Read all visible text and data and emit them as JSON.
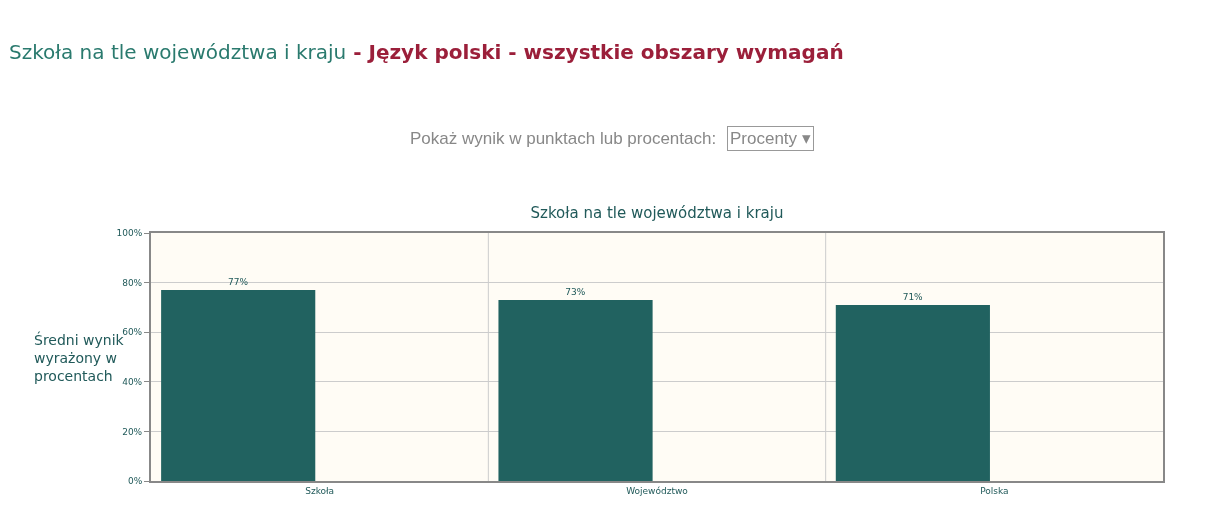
{
  "chart_data": {
    "type": "bar",
    "title": "Szkoła na tle województwa i kraju",
    "ylabel": "Średni wynik wyrażony w procentach",
    "annotations": [
      "Szkoła na tle województwa i kraju",
      " - Język polski - wszystkie obszary wymagań",
      "Pokaż wynik w punktach lub procentach:",
      "Procenty ▾"
    ],
    "categories": [
      "Szkoła",
      "Województwo",
      "Polska"
    ],
    "values": [
      77,
      73,
      71
    ],
    "value_labels": [
      "77%",
      "73%",
      "71%"
    ],
    "color": "#216260",
    "ylim": [
      0,
      100
    ],
    "yticks": [
      {
        "value": 0,
        "label": "0%"
      },
      {
        "value": 20,
        "label": "20%"
      },
      {
        "value": 40,
        "label": "40%"
      },
      {
        "value": 60,
        "label": "60%"
      },
      {
        "value": 80,
        "label": "80%"
      },
      {
        "value": 100,
        "label": "100%"
      }
    ],
    "grid": true
  }
}
